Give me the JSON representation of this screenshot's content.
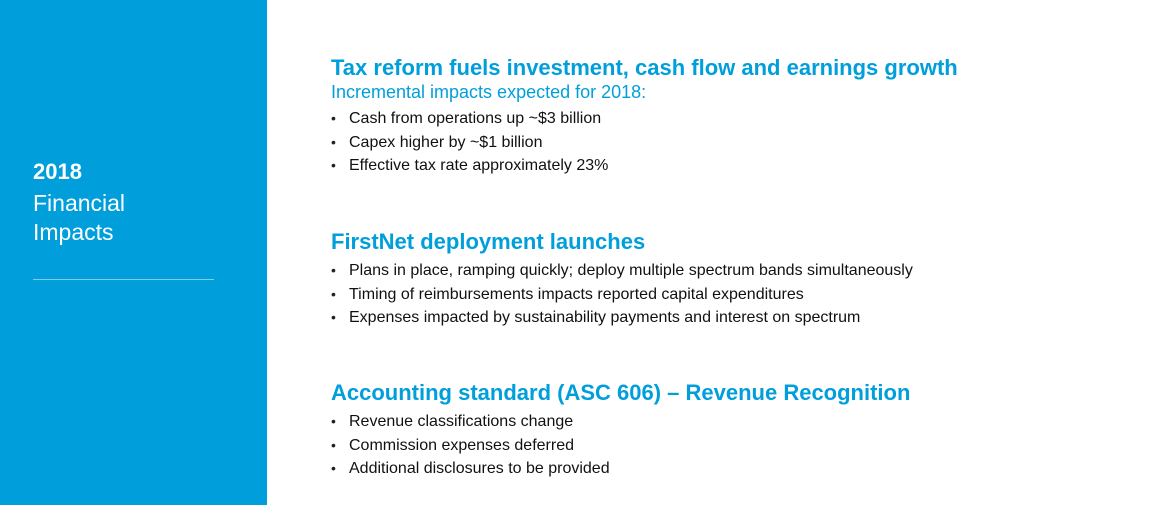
{
  "sidebar": {
    "year": "2018",
    "title_lines": [
      "Financial",
      "Impacts"
    ]
  },
  "sections": [
    {
      "heading": "Tax reform fuels investment, cash flow and earnings growth",
      "subheading": "Incremental impacts expected for 2018:",
      "bullets": [
        "Cash from operations up ~$3 billion",
        "Capex higher by ~$1 billion",
        "Effective tax rate approximately 23%"
      ]
    },
    {
      "heading": "FirstNet deployment launches",
      "bullets": [
        "Plans in place, ramping quickly; deploy multiple spectrum bands simultaneously",
        "Timing of reimbursements impacts reported capital expenditures",
        "Expenses impacted by sustainability payments and interest on spectrum"
      ]
    },
    {
      "heading": "Accounting standard (ASC 606) – Revenue Recognition",
      "bullets": [
        "Revenue classifications change",
        "Commission expenses deferred",
        "Additional disclosures to be provided"
      ]
    }
  ],
  "bullet_glyph": "•",
  "colors": {
    "sidebar": "#009fdb",
    "heading": "#009fdb",
    "body_text": "#111111"
  }
}
